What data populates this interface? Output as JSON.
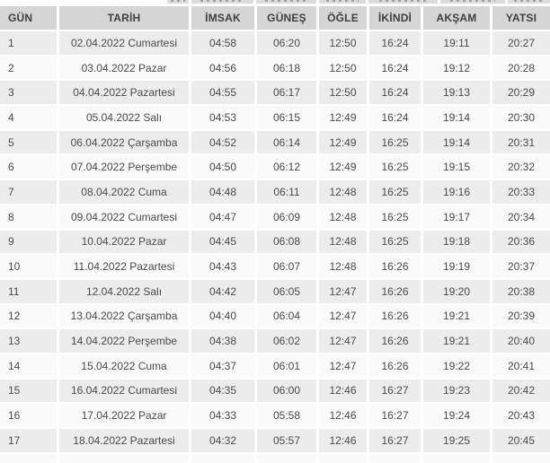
{
  "table": {
    "headers": [
      "GÜN",
      "TARİH",
      "İMSAK",
      "GÜNEŞ",
      "ÖĞLE",
      "İKİNDİ",
      "AKŞAM",
      "YATSI"
    ],
    "rows": [
      [
        "1",
        "02.04.2022 Cumartesi",
        "04:58",
        "06:20",
        "12:50",
        "16:24",
        "19:11",
        "20:27"
      ],
      [
        "2",
        "03.04.2022 Pazar",
        "04:56",
        "06:18",
        "12:50",
        "16:24",
        "19:12",
        "20:28"
      ],
      [
        "3",
        "04.04.2022 Pazartesi",
        "04:55",
        "06:17",
        "12:50",
        "16:24",
        "19:13",
        "20:29"
      ],
      [
        "4",
        "05.04.2022 Salı",
        "04:53",
        "06:15",
        "12:49",
        "16:24",
        "19:14",
        "20:30"
      ],
      [
        "5",
        "06.04.2022 Çarşamba",
        "04:52",
        "06:14",
        "12:49",
        "16:25",
        "19:14",
        "20:31"
      ],
      [
        "6",
        "07.04.2022 Perşembe",
        "04:50",
        "06:12",
        "12:49",
        "16:25",
        "19:15",
        "20:32"
      ],
      [
        "7",
        "08.04.2022 Cuma",
        "04:48",
        "06:11",
        "12:48",
        "16:25",
        "19:16",
        "20:33"
      ],
      [
        "8",
        "09.04.2022 Cumartesi",
        "04:47",
        "06:09",
        "12:48",
        "16:25",
        "19:17",
        "20:34"
      ],
      [
        "9",
        "10.04.2022 Pazar",
        "04:45",
        "06:08",
        "12:48",
        "16:25",
        "19:18",
        "20:36"
      ],
      [
        "10",
        "11.04.2022 Pazartesi",
        "04:43",
        "06:07",
        "12:48",
        "16:26",
        "19:19",
        "20:37"
      ],
      [
        "11",
        "12.04.2022 Salı",
        "04:42",
        "06:05",
        "12:47",
        "16:26",
        "19:20",
        "20:38"
      ],
      [
        "12",
        "13.04.2022 Çarşamba",
        "04:40",
        "06:04",
        "12:47",
        "16:26",
        "19:21",
        "20:39"
      ],
      [
        "13",
        "14.04.2022 Perşembe",
        "04:38",
        "06:02",
        "12:47",
        "16:26",
        "19:21",
        "20:40"
      ],
      [
        "14",
        "15.04.2022 Cuma",
        "04:37",
        "06:01",
        "12:47",
        "16:26",
        "19:22",
        "20:41"
      ],
      [
        "15",
        "16.04.2022 Cumartesi",
        "04:35",
        "06:00",
        "12:46",
        "16:27",
        "19:23",
        "20:42"
      ],
      [
        "16",
        "17.04.2022 Pazar",
        "04:33",
        "05:58",
        "12:46",
        "16:27",
        "19:24",
        "20:43"
      ],
      [
        "17",
        "18.04.2022 Pazartesi",
        "04:32",
        "05:57",
        "12:46",
        "16:27",
        "19:25",
        "20:45"
      ]
    ]
  },
  "colors": {
    "header_bg": "#d5d5d5",
    "header_text": "#3f3f3f",
    "row_odd_bg": "#ececec",
    "row_even_bg": "#fafafa",
    "cell_text": "#4a4a4a",
    "separator": "#ffffff"
  }
}
